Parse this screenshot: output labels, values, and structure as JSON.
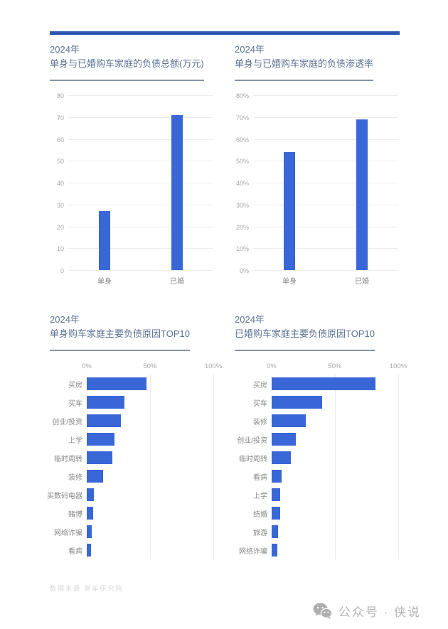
{
  "page": {
    "footer_source": "数据来源  易车研究院",
    "watermark_text": "公众号 · 侠说"
  },
  "colors": {
    "bar": "#3a67d8",
    "top_rule": "#2d55b2",
    "title": "#5b7293",
    "title_underline": "#8294a9",
    "gridline": "#ececec",
    "tick_text": "#a6a6a6",
    "label_text": "#878787",
    "footer_text": "#d6d6d6",
    "watermark": "#b5b5b5"
  },
  "chart_data": [
    {
      "type": "bar",
      "title_line1": "2024年",
      "title_line2": "单身与已婚购车家庭的负债总额(万元)",
      "categories": [
        "单身",
        "已婚"
      ],
      "values": [
        27,
        71
      ],
      "ylim": [
        0,
        80
      ],
      "yticks": [
        80,
        70,
        60,
        50,
        40,
        30,
        20,
        10,
        0
      ],
      "tick_suffix": "",
      "grid": true,
      "legend": false
    },
    {
      "type": "bar",
      "title_line1": "2024年",
      "title_line2": "单身与已婚购车家庭的负债渗透率",
      "categories": [
        "单身",
        "已婚"
      ],
      "values": [
        54,
        69
      ],
      "ylim": [
        0,
        80
      ],
      "yticks": [
        80,
        70,
        60,
        50,
        40,
        30,
        20,
        10,
        0
      ],
      "tick_suffix": "%",
      "grid": true,
      "legend": false
    },
    {
      "type": "hbar",
      "title_line1": "2024年",
      "title_line2": "单身购车家庭主要负债原因TOP10",
      "categories": [
        "买房",
        "买车",
        "创业/投资",
        "上学",
        "临时周转",
        "装修",
        "买数码电器",
        "赌博",
        "网络诈骗",
        "看病"
      ],
      "values": [
        47,
        30,
        27,
        22,
        20,
        13,
        5.5,
        5,
        4,
        3.5
      ],
      "xlim": [
        0,
        100
      ],
      "xticks": [
        0,
        50,
        100
      ],
      "tick_suffix": "%",
      "grid": true,
      "legend": false
    },
    {
      "type": "hbar",
      "title_line1": "2024年",
      "title_line2": "已婚购车家庭主要负债原因TOP10",
      "categories": [
        "买房",
        "买车",
        "装修",
        "创业/投资",
        "临时周转",
        "看病",
        "上学",
        "结婚",
        "旅游",
        "网络诈骗"
      ],
      "values": [
        82,
        40,
        27,
        19,
        15,
        8,
        7,
        6.5,
        5,
        4.5
      ],
      "xlim": [
        0,
        100
      ],
      "xticks": [
        0,
        50,
        100
      ],
      "tick_suffix": "%",
      "grid": true,
      "legend": false
    }
  ]
}
